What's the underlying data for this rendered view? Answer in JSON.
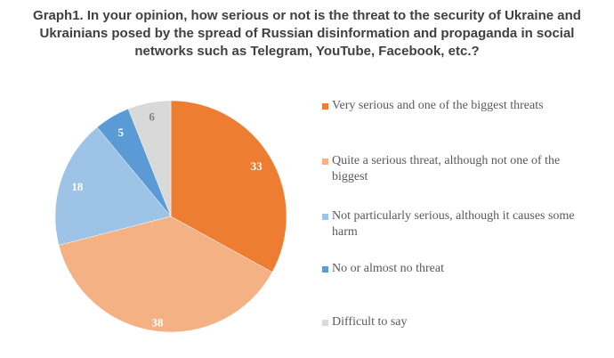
{
  "chart_data": {
    "type": "pie",
    "title": "Graph1. In your opinion, how serious or not is the threat to the security of Ukraine and Ukrainians posed by the spread of Russian disinformation and propaganda in social networks such as Telegram, YouTube, Facebook, etc.?",
    "start_angle": "12 o'clock",
    "direction": "clockwise",
    "legend_position": "right",
    "slices": [
      {
        "label": "Very serious and one of the biggest threats",
        "value": 33,
        "color": "#ED7D31",
        "label_color": "#FFFFFF"
      },
      {
        "label": "Quite a serious threat, although not one of the biggest",
        "value": 38,
        "color": "#F4B183",
        "label_color": "#FFFFFF"
      },
      {
        "label": "Not particularly serious, although it causes some harm",
        "value": 18,
        "color": "#9DC3E6",
        "label_color": "#FFFFFF"
      },
      {
        "label": "No or almost no threat",
        "value": 5,
        "color": "#5B9BD5",
        "label_color": "#FFFFFF"
      },
      {
        "label": "Difficult to say",
        "value": 6,
        "color": "#D9D9D9",
        "label_color": "#808080"
      }
    ]
  }
}
